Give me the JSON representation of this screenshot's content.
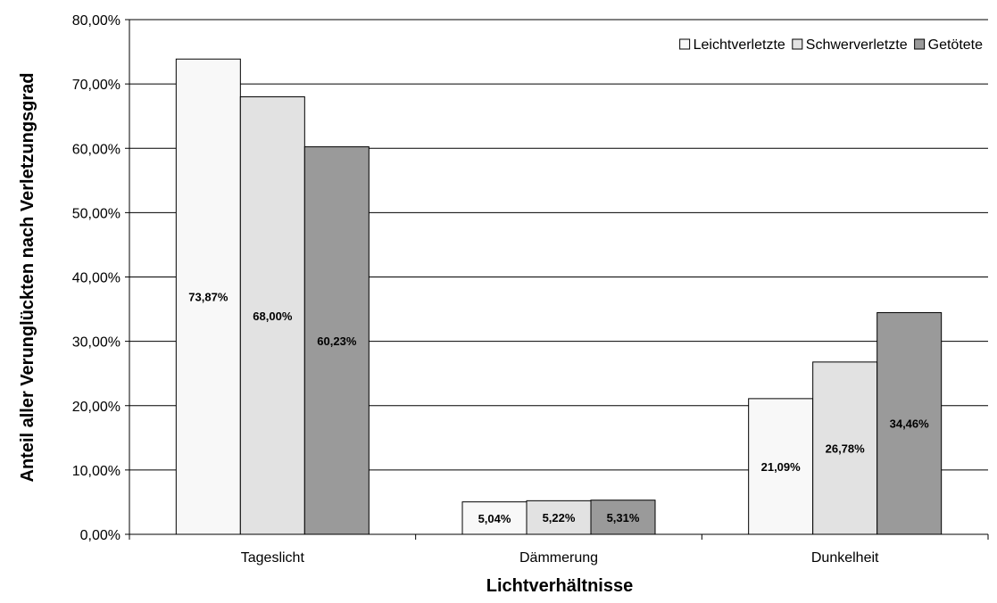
{
  "chart_data": {
    "type": "bar",
    "title": "",
    "xlabel": "Lichtverhältnisse",
    "ylabel": "Anteil aller Verunglückten nach Verletzungsgrad",
    "categories": [
      "Tageslicht",
      "Dämmerung",
      "Dunkelheit"
    ],
    "ylim": [
      0,
      80
    ],
    "yticks": [
      0,
      10,
      20,
      30,
      40,
      50,
      60,
      70,
      80
    ],
    "ytick_labels": [
      "0,00%",
      "10,00%",
      "20,00%",
      "30,00%",
      "40,00%",
      "50,00%",
      "60,00%",
      "70,00%",
      "80,00%"
    ],
    "grid": true,
    "legend_position": "top-right",
    "series": [
      {
        "name": "Leichtverletzte",
        "values": [
          73.87,
          5.04,
          21.09
        ],
        "labels": [
          "73,87%",
          "5,04%",
          "21,09%"
        ],
        "color": "#f8f8f8"
      },
      {
        "name": "Schwerverletzte",
        "values": [
          68.0,
          5.22,
          26.78
        ],
        "labels": [
          "68,00%",
          "5,22%",
          "26,78%"
        ],
        "color": "#e2e2e2"
      },
      {
        "name": "Getötete",
        "values": [
          60.23,
          5.31,
          34.46
        ],
        "labels": [
          "60,23%",
          "5,31%",
          "34,46%"
        ],
        "color": "#9a9a9a"
      }
    ]
  }
}
